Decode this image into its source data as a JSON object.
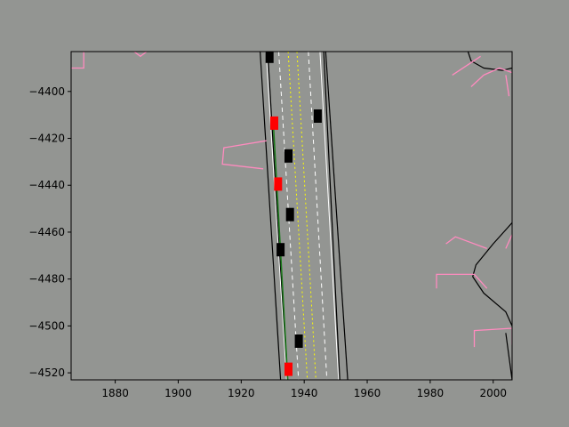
{
  "chart_data": {
    "type": "scatter",
    "title": "",
    "xlabel": "",
    "ylabel": "",
    "xlim": [
      1866,
      2006
    ],
    "ylim": [
      -4523,
      -4383
    ],
    "xticks": [
      1880,
      1900,
      1920,
      1940,
      1960,
      1980,
      2000
    ],
    "yticks": [
      -4400,
      -4420,
      -4440,
      -4460,
      -4480,
      -4500,
      -4520
    ],
    "grid": false,
    "colors": {
      "background": "#939592",
      "road_edge": "#000000",
      "lane_boundary": "#ffffff",
      "center_line": "#ffff00",
      "crosswalk_lines": "#ff8bbf",
      "ego_path": "#1a7a1a",
      "agent_vehicles": "#ff0000",
      "other_vehicles": "#000000"
    },
    "road_edges": [
      {
        "name": "left-outer",
        "points": [
          [
            1926,
            -4383
          ],
          [
            1932.5,
            -4523
          ]
        ]
      },
      {
        "name": "left-inner",
        "points": [
          [
            1928.4,
            -4383
          ],
          [
            1934.5,
            -4523
          ]
        ]
      },
      {
        "name": "right-inner",
        "points": [
          [
            1946.2,
            -4383
          ],
          [
            1951.3,
            -4523
          ]
        ]
      },
      {
        "name": "right-outer",
        "points": [
          [
            1946.8,
            -4383
          ],
          [
            1953.8,
            -4523
          ]
        ]
      }
    ],
    "lane_lines": [
      {
        "style": "solid-white",
        "points": [
          [
            1927.9,
            -4383
          ],
          [
            1934.4,
            -4523
          ]
        ]
      },
      {
        "style": "dashed-white",
        "points": [
          [
            1931.9,
            -4383
          ],
          [
            1938.2,
            -4523
          ]
        ]
      },
      {
        "style": "dashed-yellow",
        "points": [
          [
            1934.9,
            -4383
          ],
          [
            1941.0,
            -4523
          ]
        ]
      },
      {
        "style": "dashed-yellow",
        "points": [
          [
            1937.7,
            -4383
          ],
          [
            1943.7,
            -4523
          ]
        ]
      },
      {
        "style": "dashed-white",
        "points": [
          [
            1941.3,
            -4383
          ],
          [
            1947.2,
            -4523
          ]
        ]
      },
      {
        "style": "solid-white",
        "points": [
          [
            1945.0,
            -4383
          ],
          [
            1950.9,
            -4523
          ]
        ]
      }
    ],
    "ego_path": [
      [
        1930.2,
        -4414
      ],
      [
        1934.8,
        -4523
      ]
    ],
    "curbs": [
      {
        "points": [
          [
            1992,
            -4383
          ],
          [
            1993,
            -4387
          ],
          [
            1997,
            -4390
          ],
          [
            2003,
            -4391
          ],
          [
            2006,
            -4390
          ]
        ]
      },
      {
        "points": [
          [
            2006,
            -4456
          ],
          [
            2000,
            -4465
          ],
          [
            1994.5,
            -4474
          ],
          [
            1993.5,
            -4479
          ],
          [
            1997,
            -4486
          ],
          [
            2004,
            -4494
          ],
          [
            2006,
            -4500
          ]
        ]
      },
      {
        "points": [
          [
            2004,
            -4503
          ],
          [
            2006,
            -4523
          ]
        ]
      }
    ],
    "crosswalks": [
      {
        "points": [
          [
            1866,
            -4390
          ],
          [
            1870,
            -4390
          ],
          [
            1870,
            -4383
          ]
        ]
      },
      {
        "points": [
          [
            1886,
            -4383
          ],
          [
            1888,
            -4385
          ],
          [
            1890,
            -4383
          ]
        ]
      },
      {
        "points": [
          [
            1928,
            -4421
          ],
          [
            1914.5,
            -4424
          ],
          [
            1914,
            -4431
          ],
          [
            1927,
            -4433
          ]
        ]
      },
      {
        "points": [
          [
            1997,
            -4393
          ],
          [
            2002,
            -4390
          ],
          [
            2006,
            -4392
          ]
        ]
      },
      {
        "points": [
          [
            1987,
            -4393
          ],
          [
            1996,
            -4385
          ]
        ]
      },
      {
        "points": [
          [
            1993,
            -4398
          ],
          [
            1997,
            -4393
          ]
        ]
      },
      {
        "points": [
          [
            2004,
            -4393
          ],
          [
            2005,
            -4402
          ]
        ]
      },
      {
        "points": [
          [
            1985,
            -4465
          ],
          [
            1988,
            -4462
          ],
          [
            1998,
            -4467
          ]
        ]
      },
      {
        "points": [
          [
            2004,
            -4467
          ],
          [
            2006,
            -4461
          ]
        ]
      },
      {
        "points": [
          [
            1982,
            -4484
          ],
          [
            1982,
            -4478
          ],
          [
            1994,
            -4478
          ],
          [
            1998,
            -4484
          ]
        ]
      },
      {
        "points": [
          [
            1994,
            -4509
          ],
          [
            1994,
            -4502
          ],
          [
            2006,
            -4501
          ],
          [
            2006,
            -4508
          ]
        ]
      }
    ],
    "agents": [
      {
        "x": 1930.5,
        "y": -4413.5,
        "color": "red"
      },
      {
        "x": 1931.7,
        "y": -4439.5,
        "color": "red"
      },
      {
        "x": 1935.0,
        "y": -4518.5,
        "color": "red"
      },
      {
        "x": 1929.0,
        "y": -4385.0,
        "color": "black"
      },
      {
        "x": 1944.3,
        "y": -4410.5,
        "color": "black"
      },
      {
        "x": 1935.0,
        "y": -4427.5,
        "color": "black"
      },
      {
        "x": 1935.5,
        "y": -4452.5,
        "color": "black"
      },
      {
        "x": 1932.5,
        "y": -4467.5,
        "color": "black"
      },
      {
        "x": 1938.3,
        "y": -4506.5,
        "color": "black"
      }
    ]
  }
}
